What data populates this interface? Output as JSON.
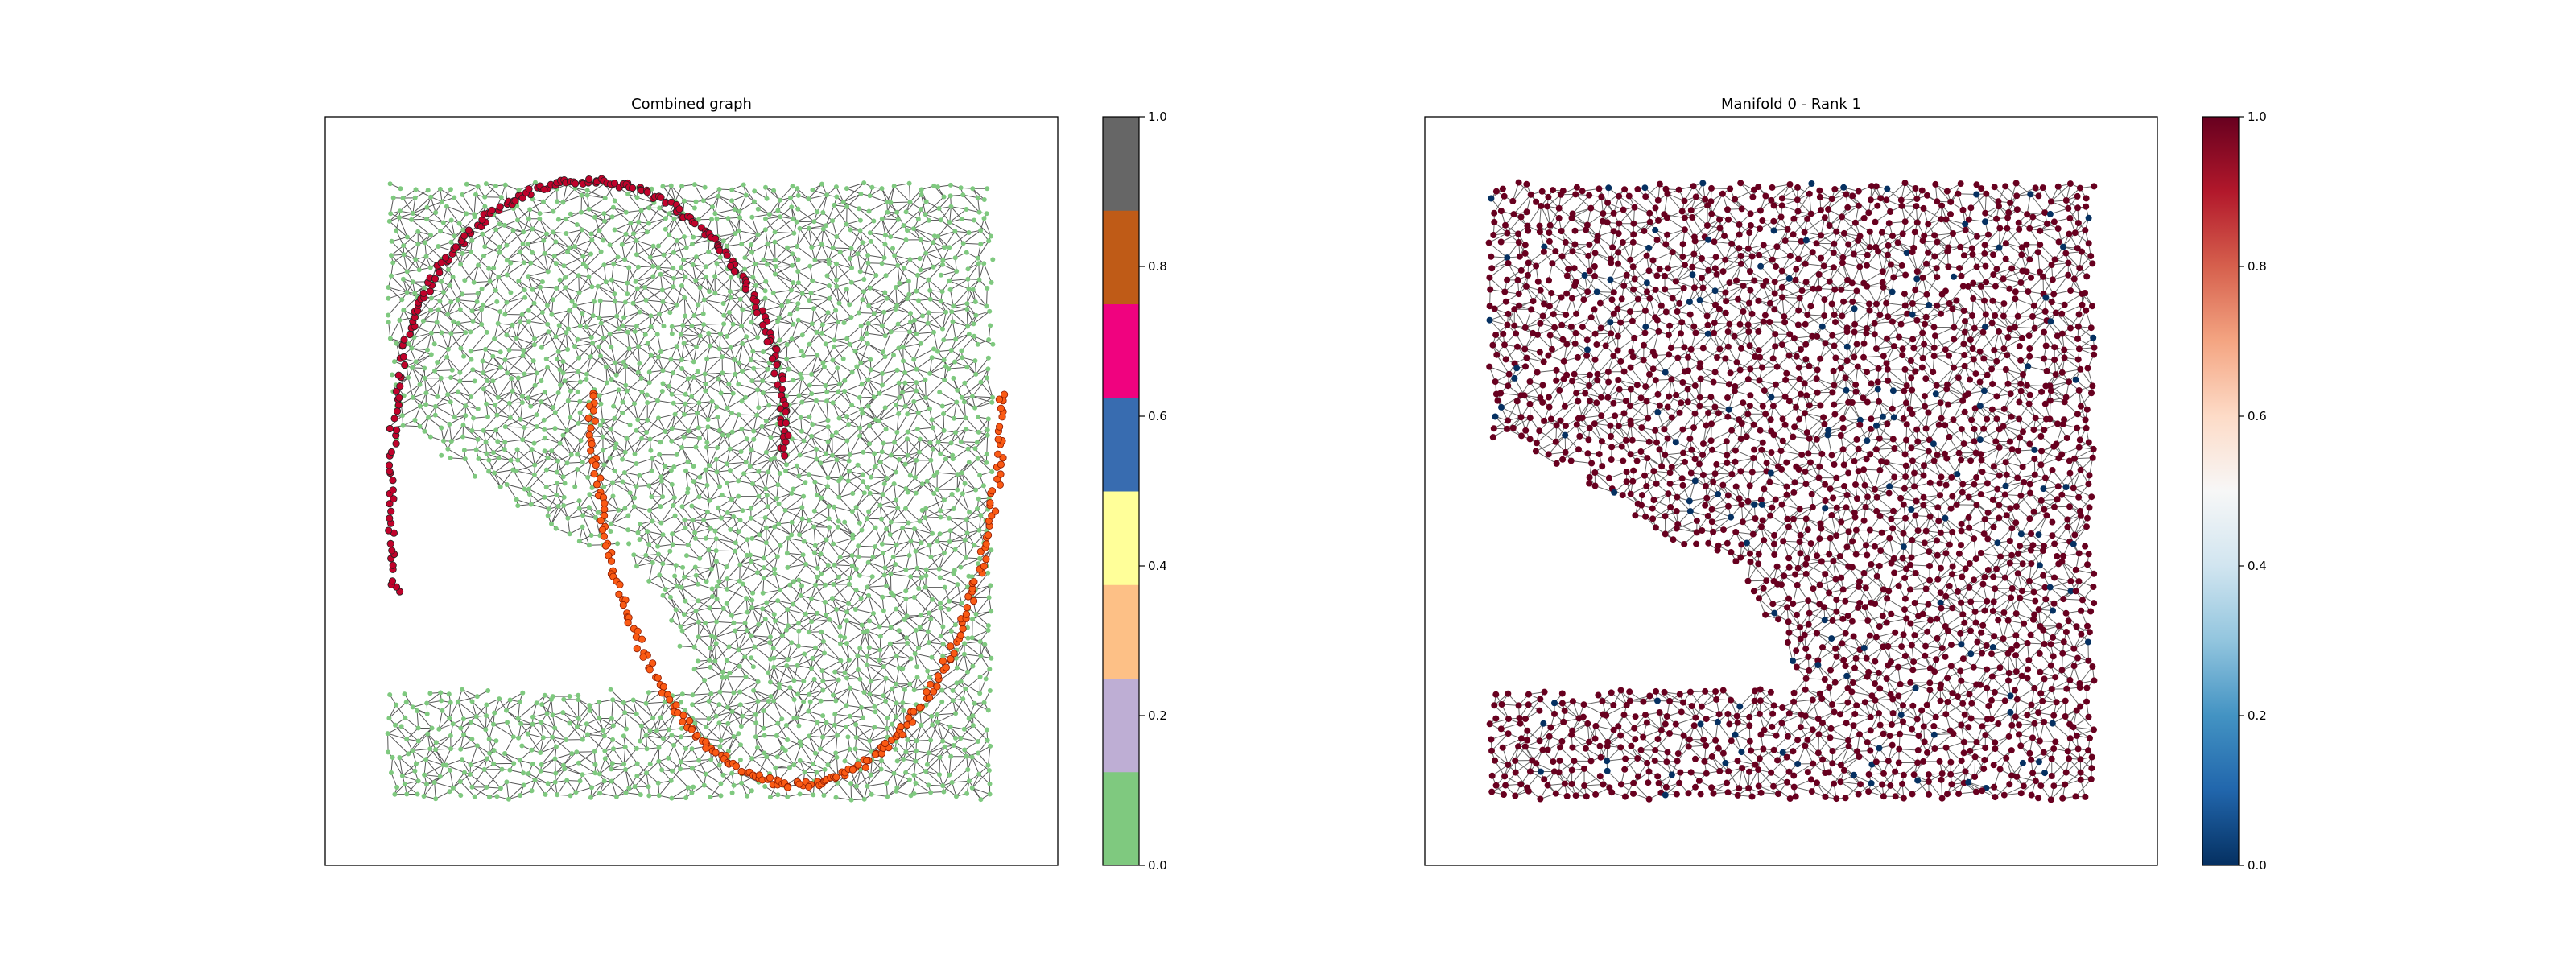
{
  "chart_data": [
    {
      "type": "scatter",
      "title": "Combined graph",
      "xlabel": "",
      "ylabel": "",
      "axes_ticks": "none",
      "grid": false,
      "description_series": [
        {
          "kind": "graph-nodes",
          "color": "#7fc97f",
          "region": "square with notch on left side"
        },
        {
          "kind": "curve-upper-arc",
          "color": "#c0022b",
          "edge_color": "#222222"
        },
        {
          "kind": "curve-lower-arc",
          "color": "#fa5a14",
          "edge_color": "#8b1a00"
        }
      ],
      "colorbar": {
        "cmap": "Accent",
        "range": [
          0.0,
          1.0
        ],
        "ticks": [
          "0.0",
          "0.2",
          "0.4",
          "0.6",
          "0.8",
          "1.0"
        ],
        "bands": [
          "#7fc97f",
          "#beaed4",
          "#fdc086",
          "#ffff99",
          "#386cb0",
          "#f0027f",
          "#bf5b17",
          "#666666"
        ]
      }
    },
    {
      "type": "scatter",
      "title": "Manifold 0 - Rank 1",
      "xlabel": "",
      "ylabel": "",
      "axes_ticks": "none",
      "grid": false,
      "node_colors": {
        "majority": "#67001f",
        "minority": "#053061"
      },
      "colorbar": {
        "cmap": "RdBu_r",
        "range": [
          0.0,
          1.0
        ],
        "ticks": [
          "0.0",
          "0.2",
          "0.4",
          "0.6",
          "0.8",
          "1.0"
        ],
        "stops": [
          "#053061",
          "#2166ac",
          "#4393c3",
          "#92c5de",
          "#d1e5f0",
          "#f7f7f7",
          "#fddbc7",
          "#f4a582",
          "#d6604d",
          "#b2182b",
          "#67001f"
        ]
      }
    }
  ]
}
